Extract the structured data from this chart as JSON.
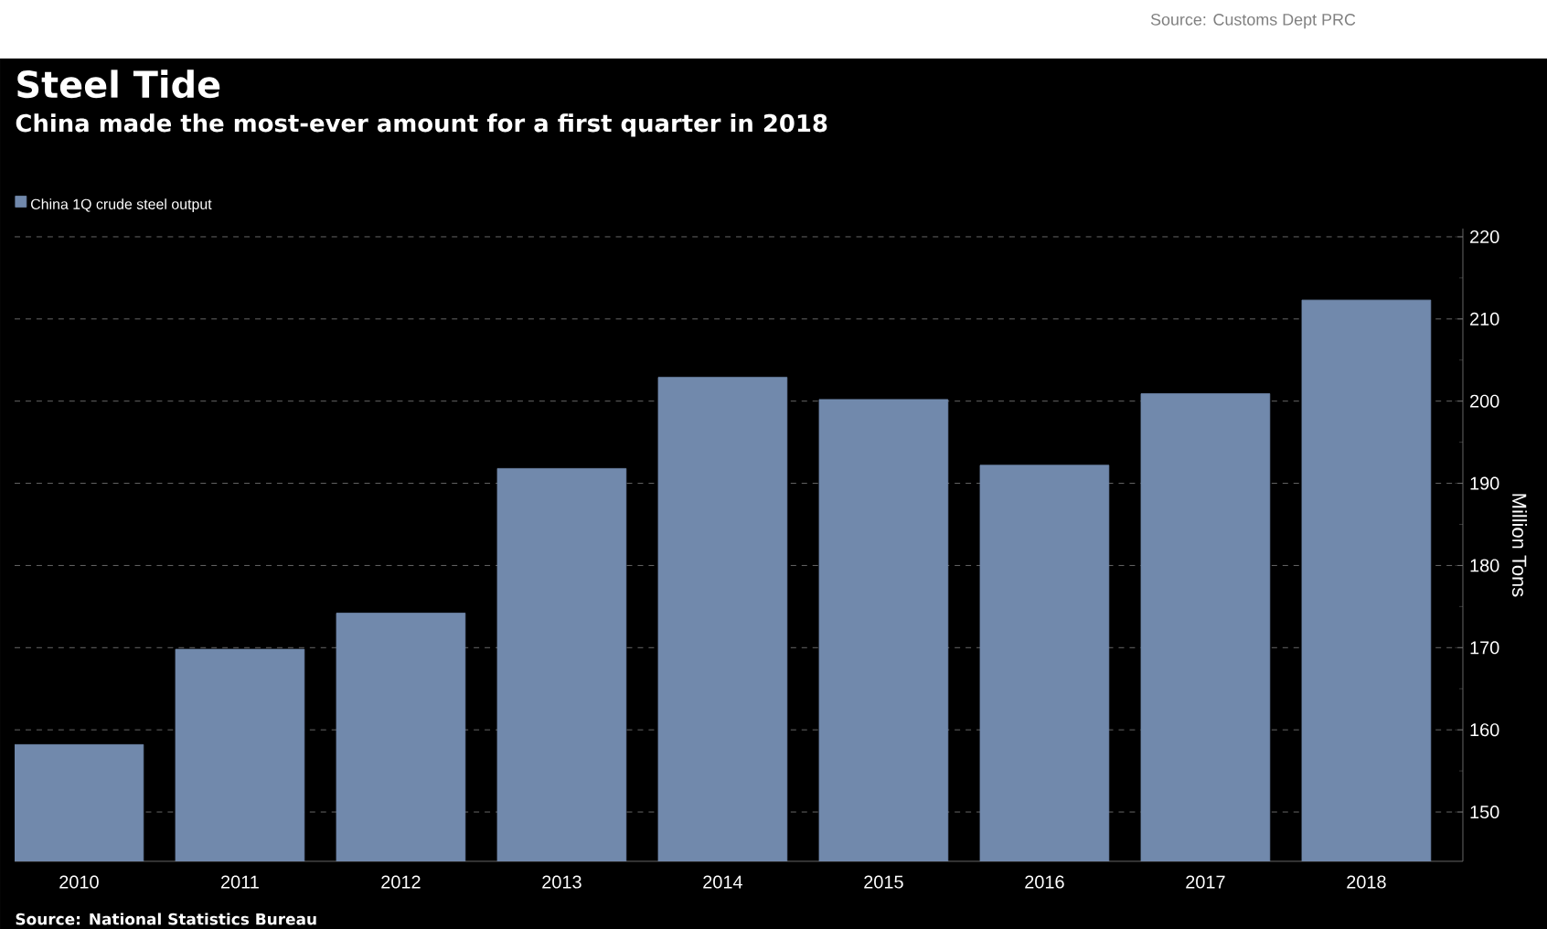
{
  "chart_data": {
    "type": "bar",
    "title": "Steel Tide",
    "subtitle": "China made the most-ever amount for a first quarter in 2018",
    "categories": [
      "2010",
      "2011",
      "2012",
      "2013",
      "2014",
      "2015",
      "2016",
      "2017",
      "2018"
    ],
    "series": [
      {
        "name": "China 1Q crude steel output",
        "color": "#7189ac",
        "values": [
          158.2,
          169.8,
          174.2,
          191.8,
          202.9,
          200.2,
          192.2,
          200.9,
          212.3
        ]
      }
    ],
    "ylabel": "Million Tons",
    "ylim": [
      144,
      221
    ],
    "yticks": [
      150,
      160,
      170,
      180,
      190,
      200,
      210,
      220
    ],
    "grid": "y",
    "legend": "top left",
    "annotations": [
      "Source: Customs Dept PRC",
      "Source: National Statistics Bureau"
    ]
  }
}
